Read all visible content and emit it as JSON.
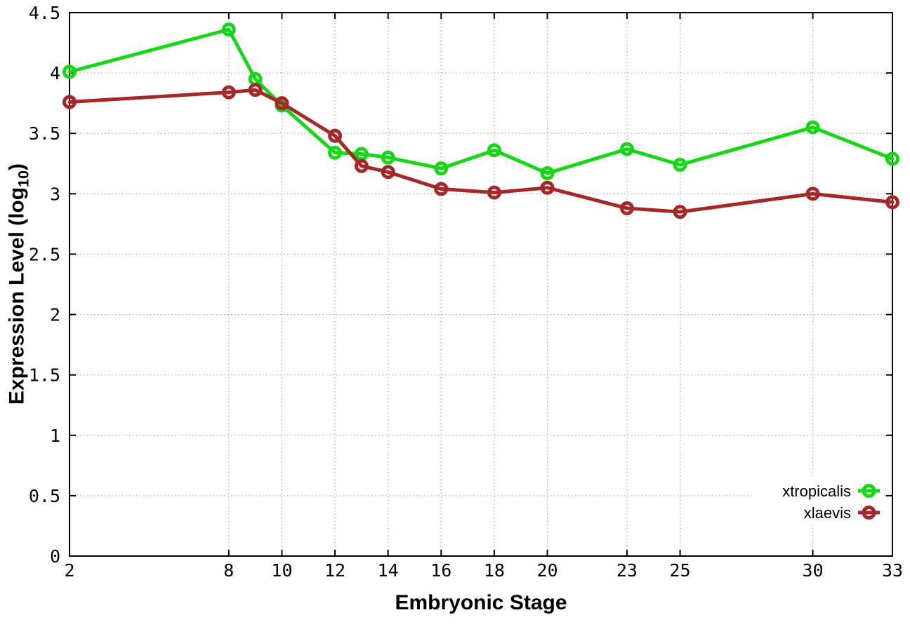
{
  "figure": {
    "background": "#ffffff"
  },
  "chart_data": {
    "type": "line",
    "title": "",
    "xlabel": "Embryonic Stage",
    "ylabel": "Expression Level (log10)",
    "ylabel_parts": {
      "pre": "Expression Level (log",
      "sub": "10",
      "post": ")"
    },
    "xlim": [
      2,
      33
    ],
    "ylim": [
      0,
      4.5
    ],
    "x_ticks": [
      2,
      8,
      10,
      12,
      14,
      16,
      18,
      20,
      23,
      25,
      30,
      33
    ],
    "x_tick_labels": [
      "2",
      "8",
      "10",
      "12",
      "14",
      "16",
      "18",
      "20",
      "23",
      "25",
      "30",
      "33"
    ],
    "y_ticks": [
      0,
      0.5,
      1,
      1.5,
      2,
      2.5,
      3,
      3.5,
      4,
      4.5
    ],
    "y_tick_labels": [
      "0",
      "0.5",
      "1",
      "1.5",
      "2",
      "2.5",
      "3",
      "3.5",
      "4",
      "4.5"
    ],
    "grid": true,
    "grid_color": "#a8a8a8",
    "border_color": "#000000",
    "legend_position": "bottom-right",
    "marker": "open-circle",
    "x": [
      2,
      8,
      9,
      10,
      12,
      13,
      14,
      16,
      18,
      20,
      23,
      25,
      30,
      33
    ],
    "series": [
      {
        "name": "xtropicalis",
        "color": "#17d517",
        "values": [
          4.01,
          4.36,
          3.95,
          3.73,
          3.34,
          3.33,
          3.3,
          3.21,
          3.36,
          3.17,
          3.37,
          3.24,
          3.55,
          3.29
        ]
      },
      {
        "name": "xlaevis",
        "color": "#a52828",
        "values": [
          3.76,
          3.84,
          3.86,
          3.75,
          3.48,
          3.23,
          3.18,
          3.04,
          3.01,
          3.05,
          2.88,
          2.85,
          3.0,
          2.93
        ]
      }
    ]
  }
}
